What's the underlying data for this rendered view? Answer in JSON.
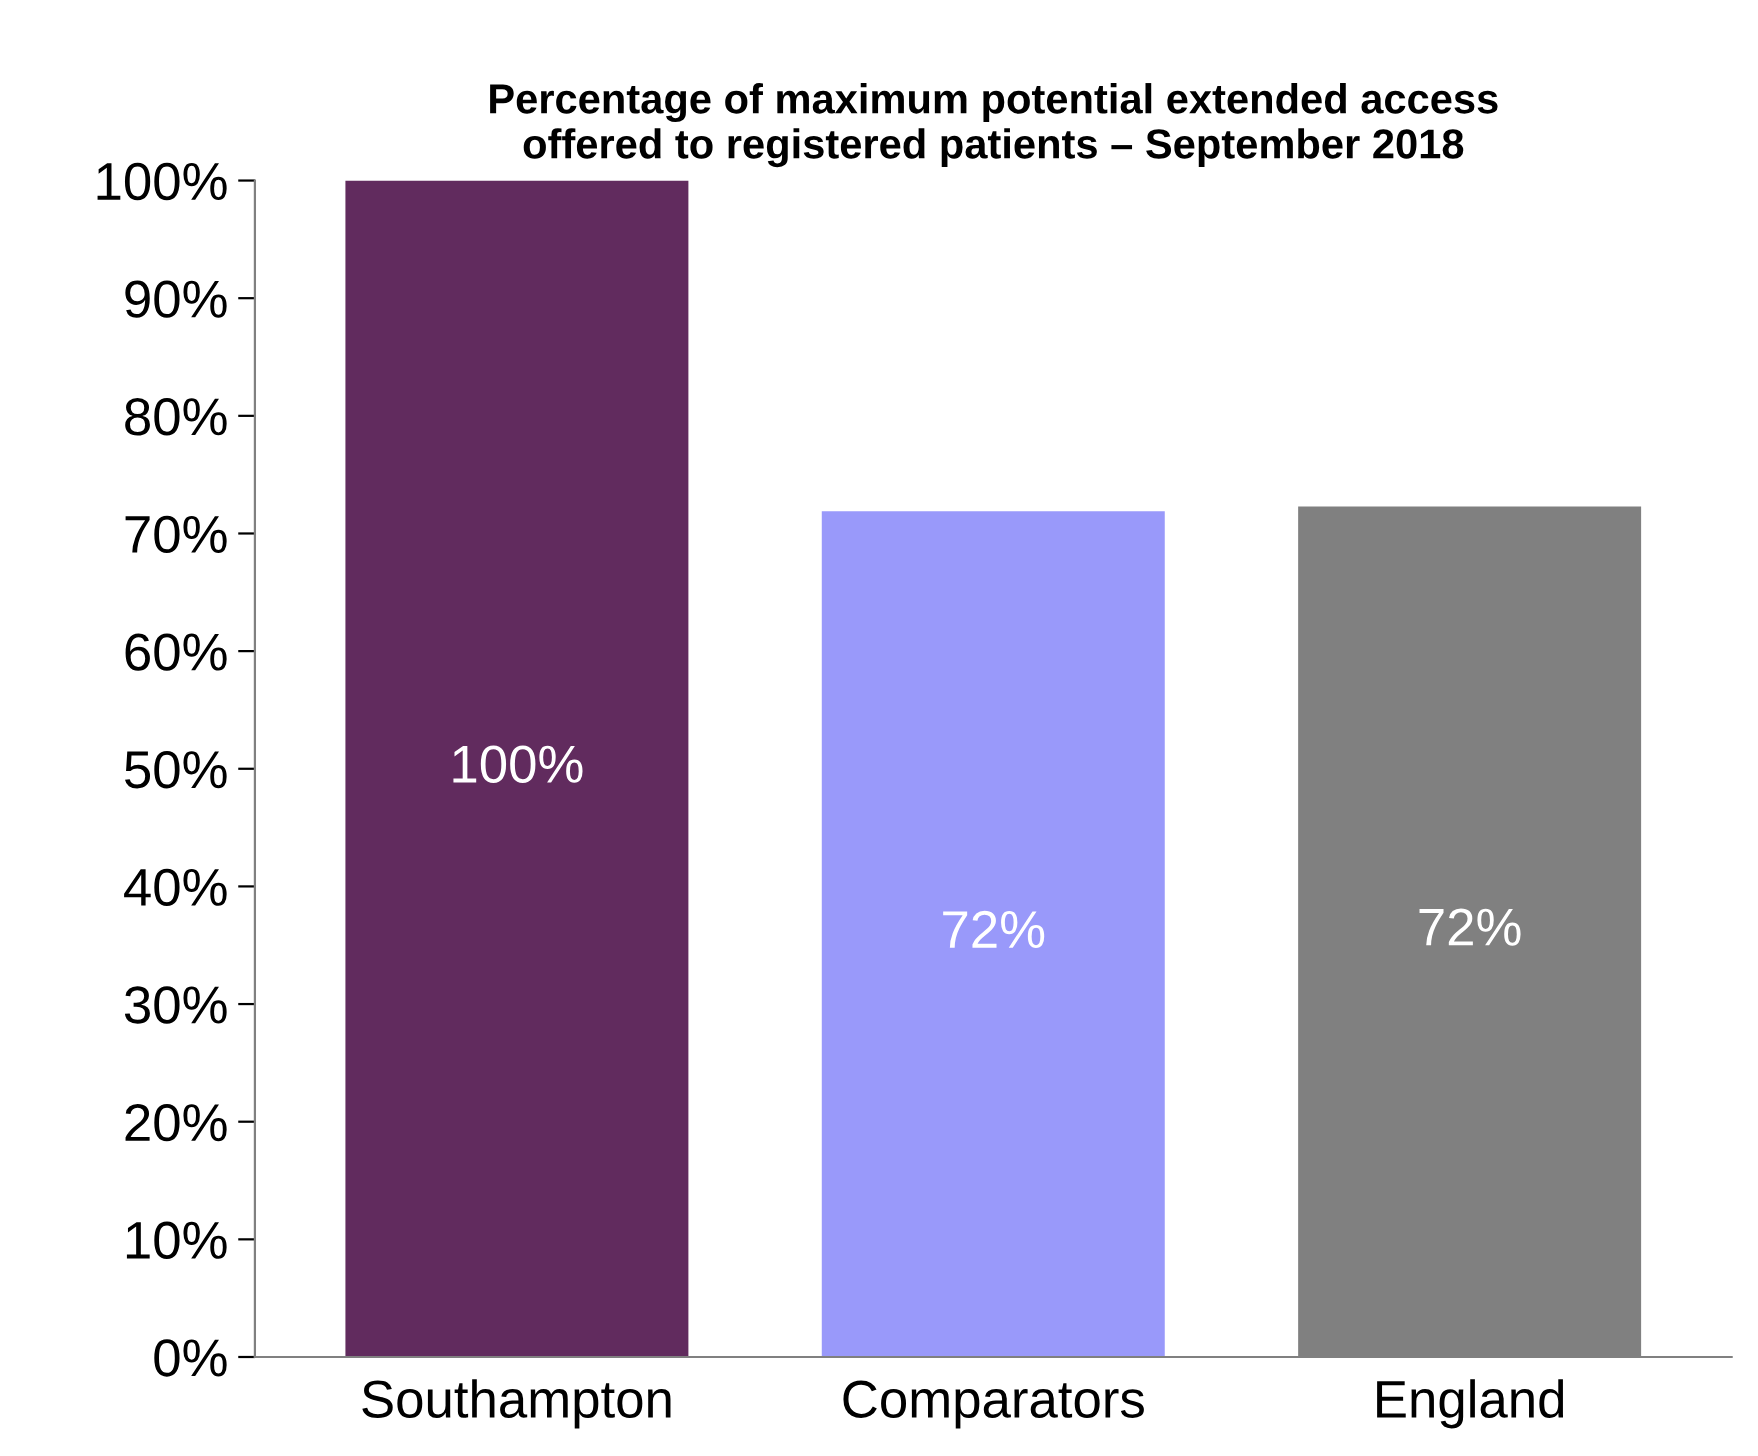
{
  "chart_data": {
    "type": "bar",
    "title": "Percentage of maximum potential extended access\noffered to registered patients – September 2018",
    "categories": [
      "Southampton",
      "Comparators",
      "England"
    ],
    "values": [
      100,
      71.9,
      72.3
    ],
    "value_labels": [
      "100%",
      "72%",
      "72%"
    ],
    "colors": [
      "#612b5e",
      "#9999fa",
      "#808080"
    ],
    "ylim": [
      0,
      100
    ],
    "yticks": [
      {
        "value": 0,
        "label": "0%"
      },
      {
        "value": 10,
        "label": "10%"
      },
      {
        "value": 20,
        "label": "20%"
      },
      {
        "value": 30,
        "label": "30%"
      },
      {
        "value": 40,
        "label": "40%"
      },
      {
        "value": 50,
        "label": "50%"
      },
      {
        "value": 60,
        "label": "60%"
      },
      {
        "value": 70,
        "label": "70%"
      },
      {
        "value": 80,
        "label": "80%"
      },
      {
        "value": 90,
        "label": "90%"
      },
      {
        "value": 100,
        "label": "100%"
      }
    ],
    "grid": false,
    "legend": false
  }
}
